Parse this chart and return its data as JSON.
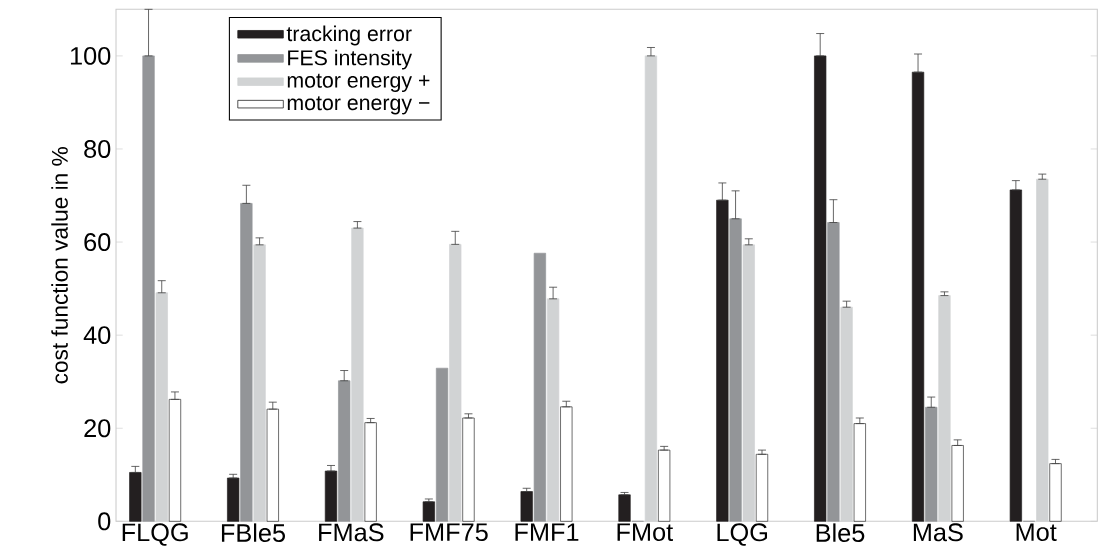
{
  "chart_data": {
    "type": "bar",
    "ylabel": "cost function value in %",
    "categories": [
      "FLQG",
      "FBle5",
      "FMaS",
      "FMF75",
      "FMF1",
      "FMot",
      "LQG",
      "Ble5",
      "MaS",
      "Mot"
    ],
    "series": [
      {
        "name": "tracking error",
        "color": "#231f20",
        "values": [
          10.5,
          9.3,
          10.8,
          4.2,
          6.4,
          5.7,
          69,
          100,
          96.5,
          71.2
        ],
        "errors": [
          [
            10.5,
            11.8
          ],
          [
            9.3,
            10.1
          ],
          [
            10.8,
            12
          ],
          [
            4.2,
            4.8
          ],
          [
            6.4,
            7.1
          ],
          [
            5.7,
            6.2
          ],
          [
            69,
            72.7
          ],
          [
            100,
            104.8
          ],
          [
            96.5,
            100.4
          ],
          [
            71.2,
            73.2
          ]
        ]
      },
      {
        "name": "FES intensity",
        "color": "#939598",
        "values": [
          100,
          68.3,
          30.2,
          32.9,
          57.6,
          0,
          65,
          64.2,
          24.5,
          0
        ],
        "errors": [
          [
            100,
            110
          ],
          [
            68.3,
            72.2
          ],
          [
            30.2,
            32.4
          ],
          null,
          null,
          null,
          [
            65,
            71
          ],
          [
            64.2,
            69.1
          ],
          [
            24.5,
            26.7
          ],
          null
        ]
      },
      {
        "name": "motor energy +",
        "color": "#d1d3d4",
        "values": [
          49.1,
          59.4,
          63,
          59.5,
          47.8,
          100,
          59.4,
          46,
          48.5,
          73.5
        ],
        "errors": [
          [
            49.1,
            51.7
          ],
          [
            59.4,
            60.9
          ],
          [
            63,
            64.4
          ],
          [
            59.5,
            62.3
          ],
          [
            47.8,
            50.3
          ],
          [
            100,
            101.8
          ],
          [
            59.4,
            60.7
          ],
          [
            46,
            47.3
          ],
          [
            48.5,
            49.3
          ],
          [
            73.5,
            74.6
          ]
        ]
      },
      {
        "name": "motor energy −",
        "color": "#ffffff",
        "values": [
          26.2,
          24.1,
          21.2,
          22.2,
          24.6,
          15.3,
          14.4,
          21,
          16.3,
          12.4
        ],
        "errors": [
          [
            26.2,
            27.8
          ],
          [
            24.1,
            25.6
          ],
          [
            21.2,
            22.1
          ],
          [
            22.2,
            23.1
          ],
          [
            24.6,
            25.8
          ],
          [
            15.3,
            16.1
          ],
          [
            14.4,
            15.3
          ],
          [
            21,
            22.2
          ],
          [
            16.3,
            17.5
          ],
          [
            12.4,
            13.3
          ]
        ]
      }
    ],
    "ylim": [
      0,
      110
    ],
    "yticks": [
      0,
      20,
      40,
      60,
      80,
      100
    ],
    "legend": "top left",
    "grid": false
  }
}
